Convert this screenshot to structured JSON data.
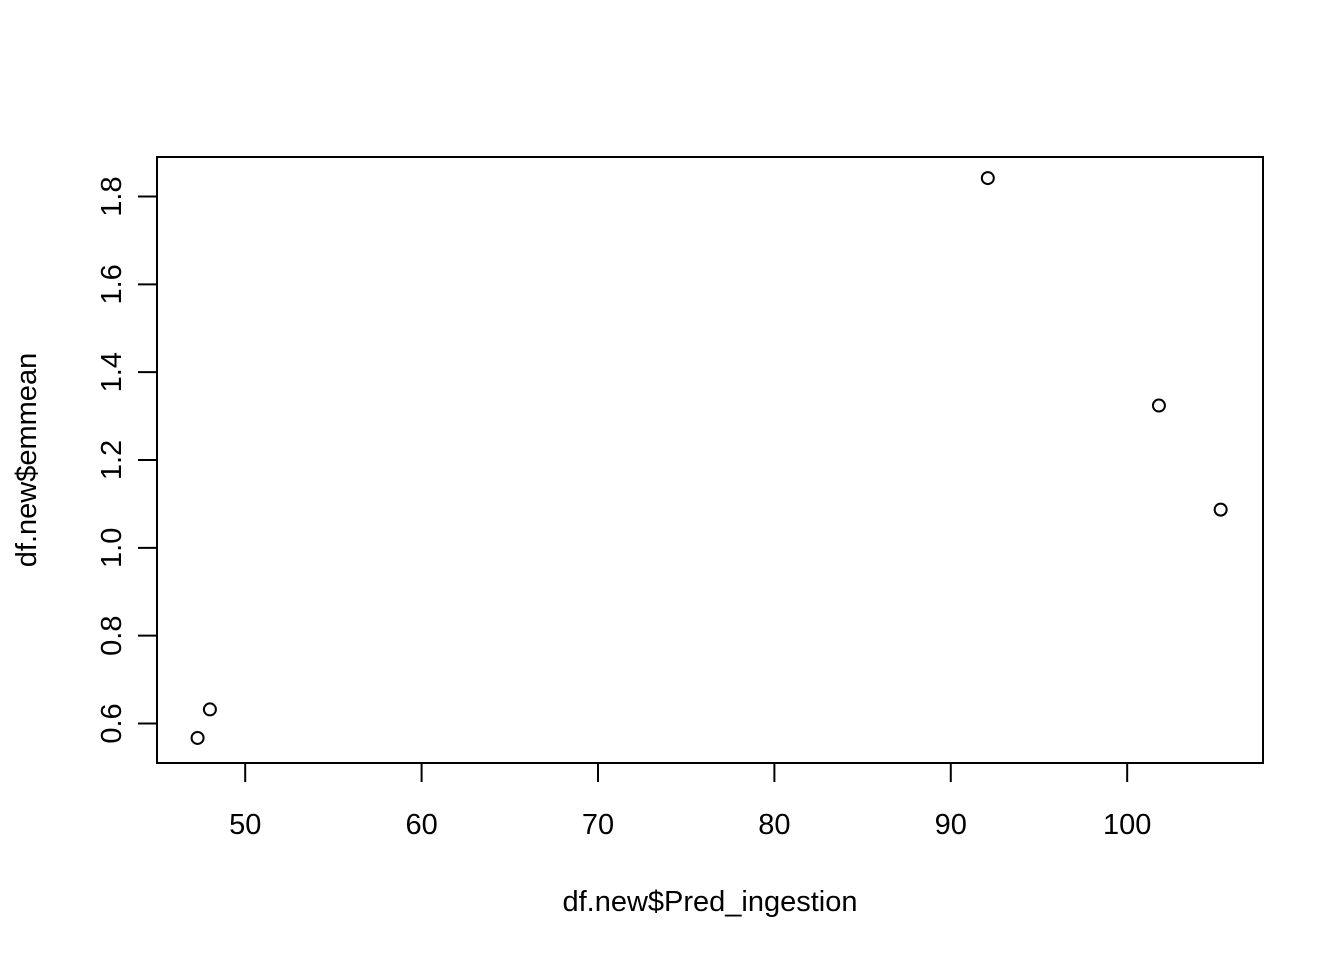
{
  "chart_data": {
    "type": "scatter",
    "xlabel": "df.new$Pred_ingestion",
    "ylabel": "df.new$emmean",
    "xlim": [
      45,
      107.7
    ],
    "ylim": [
      0.51,
      1.89
    ],
    "x_ticks": [
      50,
      60,
      70,
      80,
      90,
      100
    ],
    "y_ticks": [
      0.6,
      0.8,
      1.0,
      1.2,
      1.4,
      1.6,
      1.8
    ],
    "x_tick_labels": [
      "50",
      "60",
      "70",
      "80",
      "90",
      "100"
    ],
    "y_tick_labels": [
      "0.6",
      "0.8",
      "1.0",
      "1.2",
      "1.4",
      "1.6",
      "1.8"
    ],
    "points": [
      {
        "x": 47.3,
        "y": 0.567
      },
      {
        "x": 48.0,
        "y": 0.632
      },
      {
        "x": 92.1,
        "y": 1.842
      },
      {
        "x": 101.8,
        "y": 1.324
      },
      {
        "x": 105.3,
        "y": 1.087
      }
    ],
    "grid": false,
    "legend": "none",
    "colors": {
      "points": "#000000",
      "axes": "#000000",
      "background": "#ffffff"
    }
  }
}
